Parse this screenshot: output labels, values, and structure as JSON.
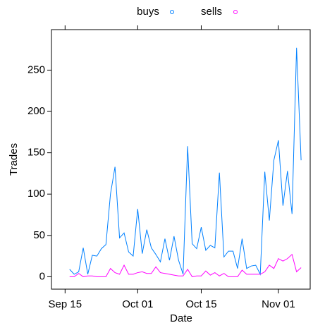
{
  "chart_data": {
    "type": "line",
    "x_label": "Date",
    "y_label": "Trades",
    "x": [
      "Sep 16",
      "Sep 17",
      "Sep 18",
      "Sep 19",
      "Sep 20",
      "Sep 21",
      "Sep 22",
      "Sep 23",
      "Sep 24",
      "Sep 25",
      "Sep 26",
      "Sep 27",
      "Sep 28",
      "Sep 29",
      "Sep 30",
      "Oct 01",
      "Oct 02",
      "Oct 03",
      "Oct 04",
      "Oct 05",
      "Oct 06",
      "Oct 07",
      "Oct 08",
      "Oct 09",
      "Oct 10",
      "Oct 11",
      "Oct 12",
      "Oct 13",
      "Oct 14",
      "Oct 15",
      "Oct 16",
      "Oct 17",
      "Oct 18",
      "Oct 19",
      "Oct 20",
      "Oct 21",
      "Oct 22",
      "Oct 23",
      "Oct 24",
      "Oct 25",
      "Oct 26",
      "Oct 27",
      "Oct 28",
      "Oct 29",
      "Oct 30",
      "Oct 31",
      "Nov 01",
      "Nov 02",
      "Nov 03",
      "Nov 04",
      "Nov 05",
      "Nov 06"
    ],
    "series": [
      {
        "name": "buys",
        "color": "#0080ff",
        "values": [
          9,
          3,
          6,
          35,
          3,
          26,
          25,
          34,
          39,
          100,
          133,
          47,
          53,
          30,
          25,
          82,
          28,
          57,
          35,
          27,
          18,
          46,
          20,
          49,
          20,
          3,
          158,
          40,
          34,
          60,
          32,
          38,
          35,
          126,
          24,
          31,
          31,
          10,
          46,
          10,
          13,
          14,
          3,
          127,
          68,
          141,
          165,
          86,
          128,
          76,
          277,
          141
        ]
      },
      {
        "name": "sells",
        "color": "#ff00ff",
        "values": [
          0,
          0,
          4,
          0,
          1,
          1,
          0,
          0,
          0,
          10,
          5,
          3,
          14,
          3,
          3,
          5,
          6,
          4,
          4,
          12,
          5,
          4,
          3,
          2,
          1,
          1,
          9,
          0,
          1,
          1,
          7,
          2,
          5,
          1,
          4,
          0,
          0,
          0,
          8,
          3,
          3,
          3,
          3,
          6,
          14,
          10,
          22,
          19,
          22,
          27,
          6,
          11
        ]
      }
    ],
    "xlim": [
      "Sep 12",
      "Nov 08"
    ],
    "xticks": [
      "Sep 15",
      "Oct 01",
      "Oct 15",
      "Nov 01"
    ],
    "ylim": [
      -15,
      299
    ],
    "yticks": [
      0,
      50,
      100,
      150,
      200,
      250
    ]
  }
}
